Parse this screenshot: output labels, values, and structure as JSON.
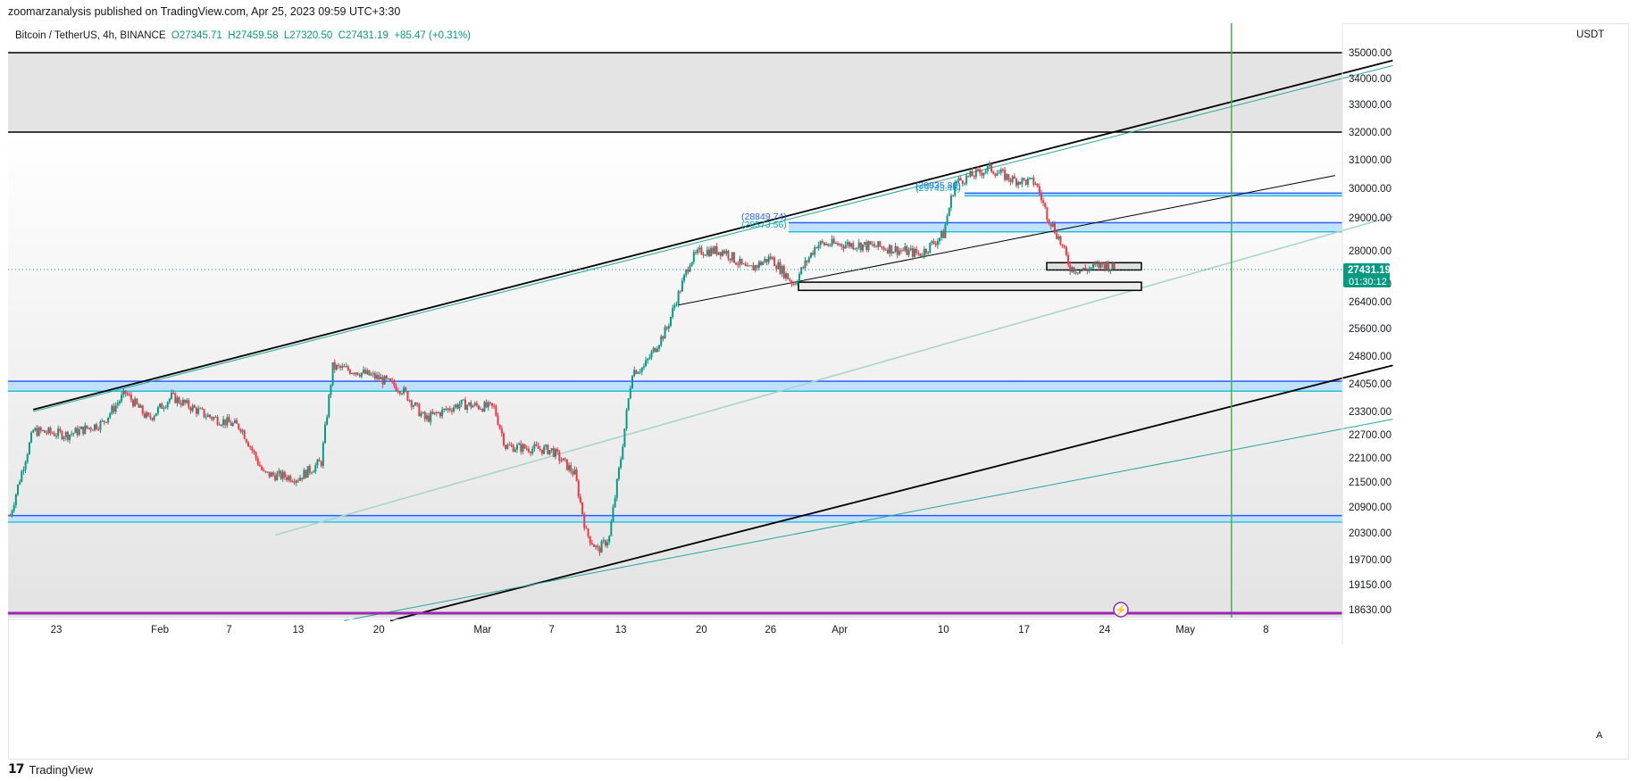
{
  "header": {
    "published": "zoomarzanalysis published on TradingView.com, Apr 25, 2023 09:59 UTC+3:30"
  },
  "legend": {
    "symbol": "Bitcoin / TetherUS, 4h, BINANCE",
    "open": "O27345.71",
    "high": "H27459.58",
    "low": "L27320.50",
    "close": "C27431.19",
    "change": "+85.47 (+0.31%)"
  },
  "footer": {
    "brand": "TradingView",
    "auto_label": "A"
  },
  "chart_data": {
    "type": "candlestick",
    "symbol": "BTCUSDT",
    "timeframe": "4h",
    "exchange": "BINANCE",
    "currency_label": "USDT",
    "last_price": "27431.19",
    "countdown": "01:30:12",
    "y_ticks": [
      "35000.00",
      "34000.00",
      "33000.00",
      "32000.00",
      "31000.00",
      "30000.00",
      "29000.00",
      "28000.00",
      "27000.00",
      "26400.00",
      "25600.00",
      "24800.00",
      "24050.00",
      "23300.00",
      "22700.00",
      "22100.00",
      "21500.00",
      "20900.00",
      "20300.00",
      "19700.00",
      "19150.00",
      "18630.00"
    ],
    "x_ticks": [
      "23",
      "Feb",
      "7",
      "13",
      "20",
      "Mar",
      "7",
      "13",
      "20",
      "26",
      "Apr",
      "10",
      "17",
      "24",
      "May",
      "8"
    ],
    "price_labels": [
      "(28849.74)",
      "(28573.56)",
      "(29835.80)",
      "(29743.46)"
    ],
    "price_path": [
      [
        "2023-01-19",
        20700
      ],
      [
        "2023-01-21",
        22800
      ],
      [
        "2023-01-24",
        22700
      ],
      [
        "2023-01-27",
        23000
      ],
      [
        "2023-01-29",
        23800
      ],
      [
        "2023-01-31",
        23100
      ],
      [
        "2023-02-02",
        23700
      ],
      [
        "2023-02-05",
        23200
      ],
      [
        "2023-02-08",
        22900
      ],
      [
        "2023-02-10",
        21700
      ],
      [
        "2023-02-13",
        21600
      ],
      [
        "2023-02-15",
        22000
      ],
      [
        "2023-02-16",
        24500
      ],
      [
        "2023-02-18",
        24400
      ],
      [
        "2023-02-20",
        24200
      ],
      [
        "2023-02-22",
        23900
      ],
      [
        "2023-02-24",
        23100
      ],
      [
        "2023-02-27",
        23500
      ],
      [
        "2023-03-02",
        23400
      ],
      [
        "2023-03-03",
        22400
      ],
      [
        "2023-03-07",
        22300
      ],
      [
        "2023-03-09",
        21700
      ],
      [
        "2023-03-10",
        20300
      ],
      [
        "2023-03-11",
        19900
      ],
      [
        "2023-03-12",
        20200
      ],
      [
        "2023-03-13",
        22100
      ],
      [
        "2023-03-14",
        24400
      ],
      [
        "2023-03-15",
        24500
      ],
      [
        "2023-03-17",
        25600
      ],
      [
        "2023-03-19",
        27700
      ],
      [
        "2023-03-20",
        28000
      ],
      [
        "2023-03-22",
        28000
      ],
      [
        "2023-03-24",
        27400
      ],
      [
        "2023-03-26",
        27800
      ],
      [
        "2023-03-28",
        27000
      ],
      [
        "2023-03-30",
        28200
      ],
      [
        "2023-04-02",
        28200
      ],
      [
        "2023-04-05",
        28100
      ],
      [
        "2023-04-08",
        27900
      ],
      [
        "2023-04-10",
        28500
      ],
      [
        "2023-04-11",
        30200
      ],
      [
        "2023-04-14",
        30700
      ],
      [
        "2023-04-16",
        30300
      ],
      [
        "2023-04-18",
        30200
      ],
      [
        "2023-04-19",
        29100
      ],
      [
        "2023-04-20",
        28400
      ],
      [
        "2023-04-21",
        27500
      ],
      [
        "2023-04-22",
        27400
      ],
      [
        "2023-04-24",
        27600
      ],
      [
        "2023-04-25",
        27431
      ]
    ],
    "zones": [
      {
        "from": 32000,
        "to": 35000,
        "color": "#e1e1e1"
      },
      {
        "from": 28573.56,
        "to": 28849.74,
        "color": "#bbdefb"
      },
      {
        "from": 29743.46,
        "to": 29835.8,
        "color": "#bbdefb"
      },
      {
        "from": 23850,
        "to": 24120,
        "color": "#bbdefb"
      },
      {
        "from": 20550,
        "to": 20700,
        "color": "#bbdefb"
      }
    ],
    "colors": {
      "up": "#089981",
      "down": "#f23645",
      "channel": "#000000",
      "support": "#2962ff",
      "trend_light": "#a5d6c8",
      "vertical": "#4caf50",
      "floor": "#9c27b0",
      "last_price": "#089981"
    }
  }
}
